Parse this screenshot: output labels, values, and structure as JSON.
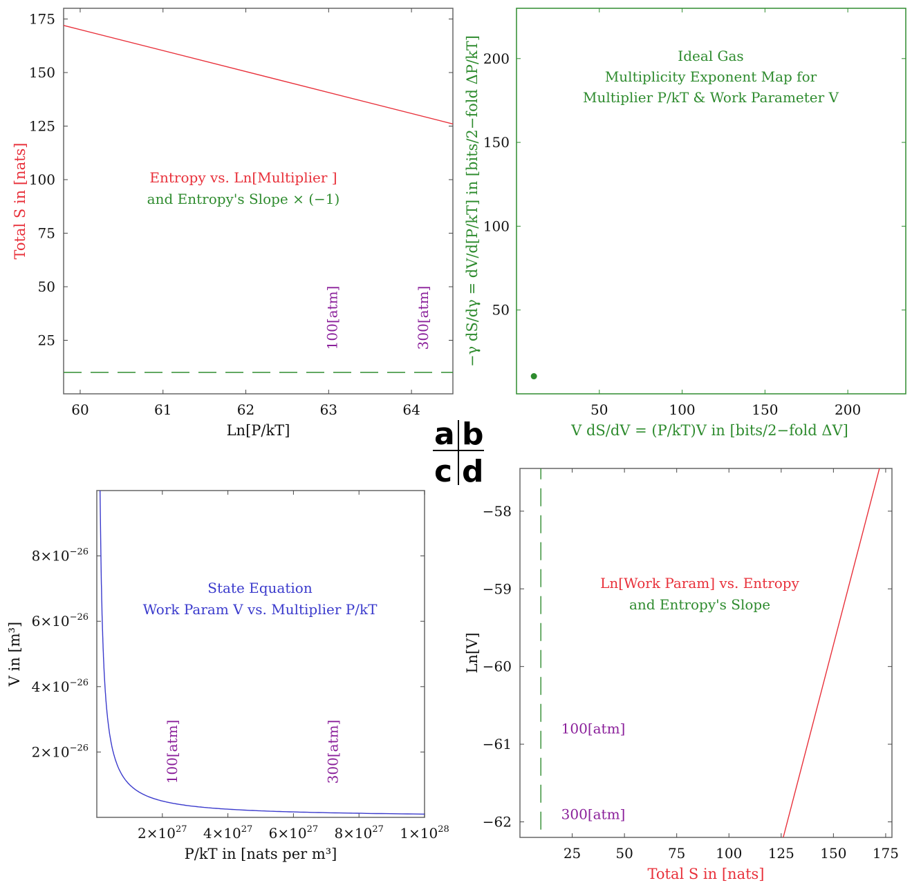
{
  "colors": {
    "red": "#e8303a",
    "green": "#2e8b2e",
    "blue": "#3a3acc",
    "purple": "#8a1f9a",
    "frame": "#666666"
  },
  "panel_letters": {
    "a": "a",
    "b": "b",
    "c": "c",
    "d": "d"
  },
  "chart_data": [
    {
      "id": "a",
      "type": "line",
      "xlabel": "Ln[P/kT]",
      "ylabel": "Total S in [nats]",
      "xlim": [
        59.8,
        64.5
      ],
      "ylim": [
        0,
        180
      ],
      "xticks": [
        60,
        61,
        62,
        63,
        64
      ],
      "yticks": [
        25,
        50,
        75,
        100,
        125,
        150,
        175
      ],
      "annotation_lines": [
        {
          "text": "Entropy vs. Ln[Multiplier ]",
          "color": "red"
        },
        {
          "text": "and Entropy's Slope × (−1)",
          "color": "green"
        }
      ],
      "markers": [
        {
          "x": 63.1,
          "label": "100[atm]"
        },
        {
          "x": 64.2,
          "label": "300[atm]"
        }
      ],
      "series": [
        {
          "style": "solid",
          "color": "red",
          "x": [
            59.8,
            64.5
          ],
          "y": [
            172,
            126
          ]
        },
        {
          "style": "dashed",
          "color": "green",
          "x": [
            59.8,
            64.5
          ],
          "y": [
            10,
            10
          ]
        }
      ]
    },
    {
      "id": "b",
      "type": "scatter",
      "xlabel": "V dS/dV = (P/kT)V in [bits/2−fold ΔV]",
      "ylabel": "−γ dS/dγ = dV/d[P/kT] in [bits/2−fold ΔP/kT]",
      "xlim": [
        0,
        235
      ],
      "ylim": [
        0,
        230
      ],
      "xticks": [
        50,
        100,
        150,
        200
      ],
      "yticks": [
        50,
        100,
        150,
        200
      ],
      "title_lines": [
        "Ideal Gas",
        "Multiplicity  Exponent Map for",
        "Multiplier  P/kT & Work Parameter V"
      ],
      "points": [
        {
          "x": 10.5,
          "y": 10.5
        }
      ]
    },
    {
      "id": "c",
      "type": "line",
      "xlabel": "P/kT in [nats per m³]",
      "ylabel": "V in [m³]",
      "xlim": [
        0,
        1e+28
      ],
      "ylim": [
        0,
        1e-25
      ],
      "xticks": [
        {
          "value": 2e+27,
          "mant": "2×10",
          "exp": "27"
        },
        {
          "value": 4e+27,
          "mant": "4×10",
          "exp": "27"
        },
        {
          "value": 6e+27,
          "mant": "6×10",
          "exp": "27"
        },
        {
          "value": 8e+27,
          "mant": "8×10",
          "exp": "27"
        },
        {
          "value": 1e+28,
          "mant": "1×10",
          "exp": "28"
        }
      ],
      "yticks": [
        {
          "value": 2e-26,
          "mant": "2×10",
          "exp": "−26"
        },
        {
          "value": 4e-26,
          "mant": "4×10",
          "exp": "−26"
        },
        {
          "value": 6e-26,
          "mant": "6×10",
          "exp": "−26"
        },
        {
          "value": 8e-26,
          "mant": "8×10",
          "exp": "−26"
        }
      ],
      "annotation_lines": [
        {
          "text": "State Equation",
          "color": "blue"
        },
        {
          "text": "Work Param V vs. Multiplier  P/kT",
          "color": "blue"
        }
      ],
      "markers": [
        {
          "x": 2.45e+27,
          "label": "100[atm]"
        },
        {
          "x": 7.35e+27,
          "label": "300[atm]"
        }
      ],
      "series": [
        {
          "style": "solid",
          "color": "blue",
          "func": "reciprocal",
          "k": 10.0,
          "x_start": 1e+26,
          "x_end": 1e+28
        }
      ]
    },
    {
      "id": "d",
      "type": "line",
      "xlabel": "Total S in [nats]",
      "ylabel": "Ln[V]",
      "xlim": [
        0,
        178
      ],
      "ylim": [
        -62.2,
        -57.45
      ],
      "xticks": [
        25,
        50,
        75,
        100,
        125,
        150,
        175
      ],
      "yticks": [
        -58,
        -59,
        -60,
        -61,
        -62
      ],
      "annotation_lines": [
        {
          "text": "Ln[Work Param] vs. Entropy",
          "color": "red"
        },
        {
          "text": "and Entropy's Slope",
          "color": "green"
        }
      ],
      "markers": [
        {
          "y": -60.8,
          "label": "100[atm]"
        },
        {
          "y": -61.9,
          "label": "300[atm]"
        }
      ],
      "series": [
        {
          "style": "solid",
          "color": "red",
          "x": [
            126,
            172
          ],
          "y": [
            -62.2,
            -57.45
          ]
        },
        {
          "style": "dashed",
          "color": "green",
          "x": [
            10,
            10
          ],
          "y": [
            -62.1,
            -57.45
          ]
        }
      ]
    }
  ]
}
